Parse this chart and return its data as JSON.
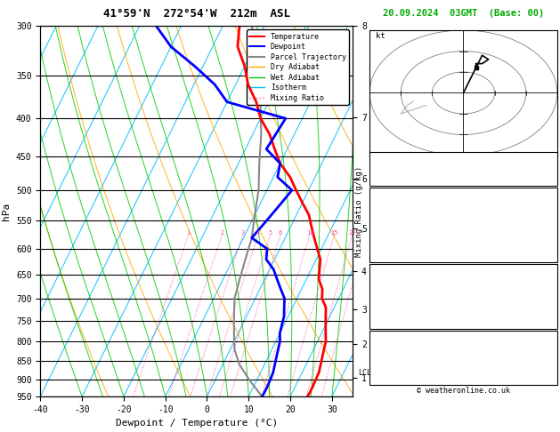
{
  "title_left": "41°59'N  272°54'W  212m  ASL",
  "title_right": "20.09.2024  03GMT  (Base: 00)",
  "xlabel": "Dewpoint / Temperature (°C)",
  "ylabel_left": "hPa",
  "pressure_ticks": [
    300,
    350,
    400,
    450,
    500,
    550,
    600,
    650,
    700,
    750,
    800,
    850,
    900,
    950
  ],
  "temp_xticks": [
    -40,
    -30,
    -20,
    -10,
    0,
    10,
    20,
    30
  ],
  "km_ticks": [
    1,
    2,
    3,
    4,
    5,
    6,
    7,
    8
  ],
  "km_pressures": [
    873,
    751,
    644,
    543,
    447,
    359,
    272,
    181
  ],
  "lcl_pressure": 855,
  "mixing_ratio_values": [
    1,
    2,
    3,
    4,
    5,
    6,
    10,
    15,
    20,
    25
  ],
  "mr_label_pressure": 575,
  "background_color": "#ffffff",
  "isotherm_color": "#00bfff",
  "dry_adiabat_color": "#ffa500",
  "wet_adiabat_color": "#00cc00",
  "mixing_ratio_color": "#ff44aa",
  "temperature_color": "#ff0000",
  "dewpoint_color": "#0000ff",
  "parcel_color": "#888888",
  "temperature_data": {
    "pressure": [
      300,
      320,
      340,
      360,
      380,
      400,
      420,
      440,
      460,
      480,
      500,
      520,
      540,
      560,
      580,
      600,
      620,
      640,
      660,
      680,
      700,
      720,
      740,
      760,
      780,
      800,
      820,
      840,
      860,
      880,
      900,
      920,
      940,
      950
    ],
    "temp": [
      -36,
      -34,
      -30,
      -27,
      -23,
      -20,
      -16,
      -13,
      -10,
      -6,
      -3,
      0,
      3,
      5,
      7,
      9,
      11,
      12,
      13,
      15,
      16,
      18,
      19,
      20,
      21,
      22,
      22.5,
      23,
      23.5,
      24,
      24.1,
      24.2,
      24.2,
      24.1
    ]
  },
  "dewpoint_data": {
    "pressure": [
      300,
      320,
      340,
      360,
      380,
      400,
      420,
      440,
      460,
      480,
      500,
      520,
      540,
      560,
      580,
      600,
      620,
      640,
      660,
      680,
      700,
      720,
      740,
      760,
      780,
      800,
      820,
      840,
      860,
      880,
      900,
      920,
      940,
      950
    ],
    "dewpoint": [
      -56,
      -50,
      -42,
      -35,
      -30,
      -14,
      -14.5,
      -15,
      -10,
      -9,
      -4,
      -5,
      -6,
      -7,
      -8,
      -3,
      -2,
      1,
      3,
      5,
      7,
      8,
      9,
      9.5,
      10,
      11,
      11.5,
      12,
      12.5,
      13,
      13.2,
      13.3,
      13.3,
      13.2
    ]
  },
  "parcel_data": {
    "pressure": [
      950,
      900,
      860,
      820,
      780,
      740,
      700,
      660,
      620,
      580,
      540,
      500,
      460,
      420,
      380,
      340,
      300
    ],
    "temp": [
      13.2,
      8,
      4,
      1,
      -1,
      -3,
      -5,
      -6,
      -7,
      -8,
      -10,
      -12,
      -15,
      -18,
      -22,
      -27,
      -33
    ]
  },
  "font_mono": "monospace",
  "copyright": "© weatheronline.co.uk",
  "hodo_trace_u": [
    0,
    1,
    2,
    3,
    4,
    3,
    2,
    2
  ],
  "hodo_trace_v": [
    0,
    3,
    6,
    9,
    8,
    7,
    7,
    6
  ],
  "hodo_ghost_u": [
    -6,
    -8,
    -10,
    -9,
    -8
  ],
  "hodo_ghost_v": [
    -3,
    -4,
    -5,
    -3,
    -2
  ]
}
